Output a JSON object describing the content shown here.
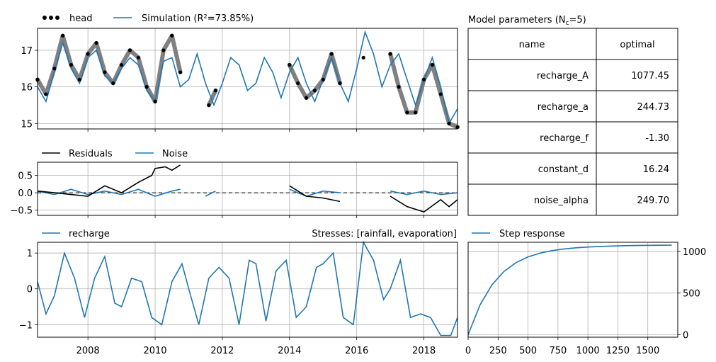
{
  "figure": {
    "head_panel": {
      "legend": [
        {
          "label": "head",
          "style": "dots",
          "color": "#000000"
        },
        {
          "label": "Simulation (R²=73.85%)",
          "style": "line",
          "color": "#1f77b4"
        }
      ],
      "yticks": [
        "15",
        "16",
        "17"
      ],
      "ylim": [
        14.85,
        17.6
      ],
      "head_gray_color": "#808080"
    },
    "residual_panel": {
      "legend": [
        {
          "label": "Residuals",
          "style": "line",
          "color": "#000000"
        },
        {
          "label": "Noise",
          "style": "line",
          "color": "#1f77b4"
        }
      ],
      "yticks": [
        "0.5",
        "0.0",
        "−0.5"
      ],
      "ylim": [
        -0.65,
        0.88
      ]
    },
    "recharge_panel": {
      "legend": [
        {
          "label": "recharge",
          "style": "line",
          "color": "#1f77b4"
        }
      ],
      "stresses_label": "Stresses: [rainfall, evaporation]",
      "yticks": [
        "1",
        "0",
        "−1"
      ],
      "ylim": [
        -1.35,
        1.3
      ],
      "xticks": [
        "2008",
        "2010",
        "2012",
        "2014",
        "2016",
        "2018"
      ]
    },
    "step_panel": {
      "legend": [
        {
          "label": "Step response",
          "style": "line",
          "color": "#1f77b4"
        }
      ],
      "xticks": [
        "0",
        "250",
        "500",
        "750",
        "1000",
        "1250",
        "1500"
      ],
      "yticks": [
        "0",
        "500",
        "1000"
      ]
    },
    "parameters": {
      "title": "Model parameters (N",
      "title_sub": "c",
      "title_tail": "=5)",
      "headers": [
        "name",
        "optimal"
      ],
      "rows": [
        [
          "recharge_A",
          "1077.45"
        ],
        [
          "recharge_a",
          "244.73"
        ],
        [
          "recharge_f",
          "-1.30"
        ],
        [
          "constant_d",
          "16.24"
        ],
        [
          "noise_alpha",
          "249.70"
        ]
      ]
    }
  },
  "chart_data": [
    {
      "type": "line",
      "title": "",
      "xlabel": "",
      "ylabel": "",
      "xlim": [
        2006.5,
        2019.0
      ],
      "ylim": [
        14.85,
        17.6
      ],
      "series": [
        {
          "name": "head",
          "x": [
            2006.5,
            2006.75,
            2007.0,
            2007.25,
            2007.5,
            2007.75,
            2008.0,
            2008.25,
            2008.5,
            2008.75,
            2009.0,
            2009.25,
            2009.5,
            2009.75,
            2010.0,
            2010.25,
            2010.5,
            2010.75,
            2011.6,
            2011.8,
            2014.0,
            2014.25,
            2014.5,
            2014.75,
            2015.0,
            2015.25,
            2015.5,
            2016.2,
            2017.0,
            2017.25,
            2017.5,
            2017.75,
            2018.0,
            2018.25,
            2018.5,
            2018.75,
            2019.0
          ],
          "y": [
            16.2,
            15.8,
            16.5,
            17.4,
            16.6,
            16.2,
            16.9,
            17.2,
            16.4,
            16.1,
            16.6,
            17.0,
            16.8,
            16.0,
            15.6,
            17.0,
            17.4,
            16.4,
            15.5,
            15.9,
            16.6,
            16.1,
            15.7,
            15.9,
            16.2,
            16.9,
            16.1,
            16.8,
            16.9,
            16.0,
            15.3,
            15.3,
            16.2,
            16.6,
            15.8,
            15.0,
            14.9
          ]
        },
        {
          "name": "Simulation (R²=73.85%)",
          "x": [
            2006.5,
            2006.75,
            2007.0,
            2007.25,
            2007.5,
            2007.75,
            2008.0,
            2008.25,
            2008.5,
            2008.75,
            2009.0,
            2009.25,
            2009.5,
            2009.75,
            2010.0,
            2010.25,
            2010.5,
            2010.75,
            2011.0,
            2011.25,
            2011.5,
            2011.75,
            2012.0,
            2012.25,
            2012.5,
            2012.75,
            2013.0,
            2013.25,
            2013.5,
            2013.75,
            2014.0,
            2014.25,
            2014.5,
            2014.75,
            2015.0,
            2015.25,
            2015.5,
            2015.75,
            2016.0,
            2016.25,
            2016.5,
            2016.75,
            2017.0,
            2017.25,
            2017.5,
            2017.75,
            2018.0,
            2018.25,
            2018.5,
            2018.75,
            2019.0
          ],
          "y": [
            16.0,
            15.6,
            16.4,
            17.2,
            16.5,
            16.1,
            16.8,
            17.0,
            16.3,
            16.1,
            16.5,
            16.8,
            16.6,
            15.9,
            15.6,
            16.7,
            16.8,
            16.0,
            16.2,
            16.9,
            16.1,
            15.5,
            16.1,
            16.8,
            16.6,
            15.9,
            16.1,
            16.8,
            16.4,
            15.7,
            16.4,
            16.8,
            16.1,
            15.6,
            16.2,
            16.8,
            16.1,
            15.6,
            16.5,
            17.5,
            16.9,
            16.0,
            16.6,
            16.9,
            16.2,
            15.5,
            16.2,
            16.8,
            16.0,
            15.0,
            15.4
          ]
        }
      ]
    },
    {
      "type": "line",
      "title": "",
      "xlabel": "",
      "ylabel": "",
      "xlim": [
        2006.5,
        2019.0
      ],
      "ylim": [
        -0.65,
        0.88
      ],
      "series": [
        {
          "name": "Residuals",
          "x": [
            2006.5,
            2007.0,
            2007.5,
            2008.0,
            2008.5,
            2009.0,
            2009.5,
            2009.9,
            2010.0,
            2010.3,
            2010.5,
            2010.75,
            2014.0,
            2014.5,
            2015.0,
            2015.5,
            2016.2,
            2017.0,
            2017.5,
            2018.0,
            2018.5,
            2018.75,
            2019.0
          ],
          "y": [
            0.05,
            0.0,
            -0.05,
            -0.1,
            0.2,
            0.0,
            0.3,
            0.5,
            0.7,
            0.75,
            0.65,
            0.8,
            0.2,
            -0.1,
            -0.15,
            -0.25,
            -0.55,
            -0.1,
            -0.4,
            -0.55,
            -0.2,
            -0.4,
            -0.2
          ]
        },
        {
          "name": "Noise",
          "x": [
            2006.5,
            2007.0,
            2007.5,
            2008.0,
            2008.5,
            2009.0,
            2009.5,
            2010.0,
            2010.5,
            2010.75,
            2011.5,
            2011.8,
            2014.0,
            2014.5,
            2015.0,
            2015.5,
            2017.0,
            2017.5,
            2018.0,
            2018.5,
            2019.0
          ],
          "y": [
            0.05,
            -0.05,
            0.1,
            -0.05,
            0.05,
            -0.05,
            0.1,
            -0.1,
            0.05,
            0.1,
            -0.1,
            0.05,
            0.1,
            -0.1,
            0.05,
            0.0,
            0.05,
            -0.05,
            0.05,
            -0.05,
            0.0
          ]
        }
      ]
    },
    {
      "type": "line",
      "title": "",
      "xlabel": "",
      "ylabel": "",
      "xlim": [
        2006.5,
        2019.0
      ],
      "ylim": [
        -1.35,
        1.3
      ],
      "series": [
        {
          "name": "recharge",
          "x": [
            2006.5,
            2006.75,
            2007.0,
            2007.3,
            2007.6,
            2007.9,
            2008.2,
            2008.5,
            2008.8,
            2009.0,
            2009.3,
            2009.6,
            2009.9,
            2010.2,
            2010.5,
            2010.8,
            2011.0,
            2011.3,
            2011.6,
            2011.9,
            2012.2,
            2012.5,
            2012.8,
            2013.0,
            2013.3,
            2013.6,
            2013.9,
            2014.2,
            2014.5,
            2014.8,
            2015.0,
            2015.3,
            2015.6,
            2015.9,
            2016.2,
            2016.5,
            2016.8,
            2017.0,
            2017.3,
            2017.6,
            2017.9,
            2018.2,
            2018.5,
            2018.8,
            2019.0
          ],
          "y": [
            0.2,
            -0.7,
            -0.2,
            1.0,
            0.3,
            -0.8,
            0.3,
            0.9,
            -0.4,
            -0.5,
            0.3,
            0.2,
            -0.8,
            -1.0,
            0.2,
            0.7,
            0.0,
            -1.0,
            0.3,
            0.6,
            0.3,
            -1.0,
            0.8,
            0.7,
            -0.9,
            0.5,
            0.8,
            -0.8,
            -0.5,
            0.6,
            0.7,
            1.0,
            -0.8,
            -1.0,
            1.3,
            0.8,
            -0.3,
            0.0,
            0.8,
            -0.8,
            -0.7,
            -0.8,
            -1.3,
            -1.3,
            -0.8
          ]
        }
      ]
    },
    {
      "type": "line",
      "title": "",
      "xlabel": "",
      "ylabel": "",
      "xlim": [
        0,
        1750
      ],
      "ylim": [
        -30,
        1110
      ],
      "series": [
        {
          "name": "Step response",
          "x": [
            0,
            100,
            200,
            300,
            400,
            500,
            600,
            700,
            800,
            900,
            1000,
            1100,
            1200,
            1300,
            1400,
            1500,
            1600,
            1700
          ],
          "y": [
            0,
            360,
            600,
            760,
            866,
            935,
            980,
            1010,
            1030,
            1044,
            1053,
            1060,
            1065,
            1069,
            1071,
            1073,
            1074,
            1075
          ]
        }
      ]
    }
  ]
}
